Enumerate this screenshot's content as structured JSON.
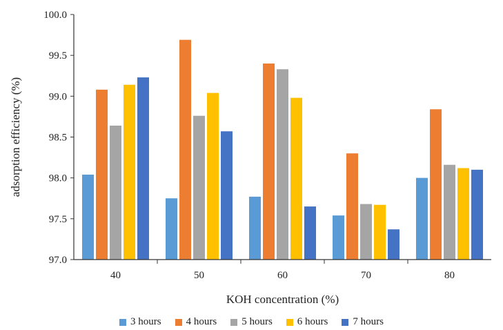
{
  "chart_data": {
    "type": "bar",
    "title": "",
    "xlabel": "KOH concentration (%)",
    "ylabel": "adsorption efficiency (%)",
    "categories": [
      "40",
      "50",
      "60",
      "70",
      "80"
    ],
    "ylim": [
      97.0,
      100.0
    ],
    "yticks": [
      "97.0",
      "97.5",
      "98.0",
      "98.5",
      "99.0",
      "99.5",
      "100.0"
    ],
    "grid": false,
    "legend_position": "bottom",
    "series": [
      {
        "name": "3 hours",
        "color": "#5B9BD5",
        "values": [
          98.04,
          97.75,
          97.77,
          97.54,
          98.0
        ]
      },
      {
        "name": "4 hours",
        "color": "#ED7D31",
        "values": [
          99.08,
          99.69,
          99.4,
          98.3,
          98.84
        ]
      },
      {
        "name": "5 hours",
        "color": "#A5A5A5",
        "values": [
          98.64,
          98.76,
          99.33,
          97.68,
          98.16
        ]
      },
      {
        "name": "6 hours",
        "color": "#FFC000",
        "values": [
          99.14,
          99.04,
          98.98,
          97.67,
          98.12
        ]
      },
      {
        "name": "7 hours",
        "color": "#4472C4",
        "values": [
          99.23,
          98.57,
          97.65,
          97.37,
          98.1
        ]
      }
    ]
  }
}
